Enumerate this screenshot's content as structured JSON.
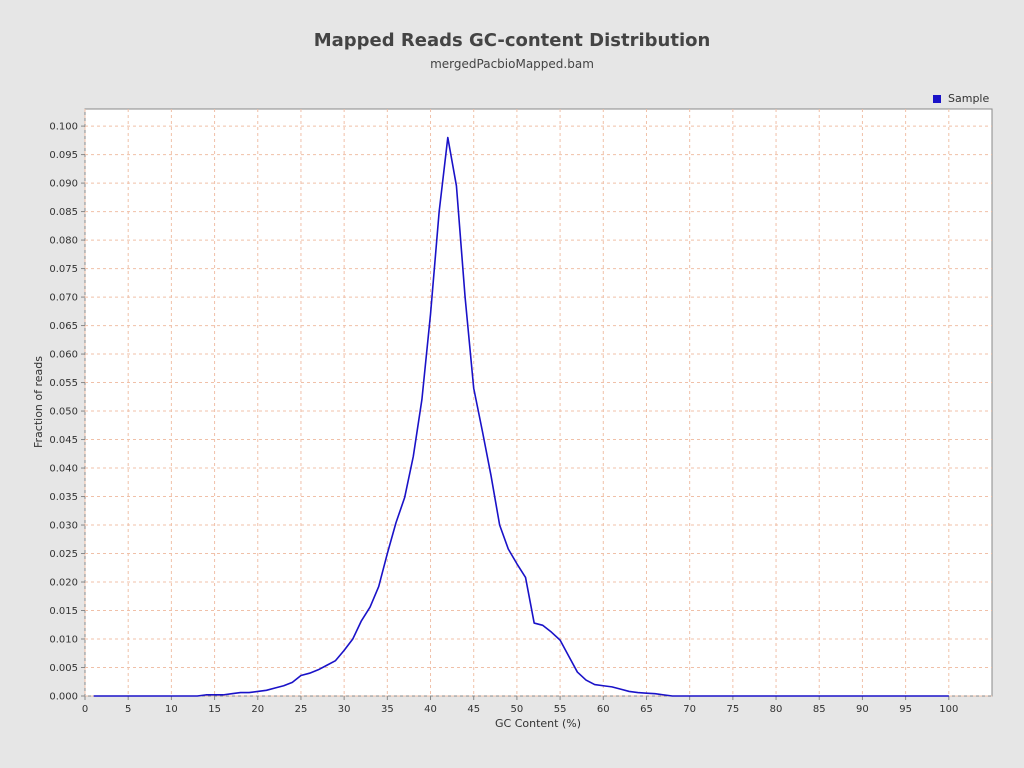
{
  "chart_data": {
    "type": "line",
    "title": "Mapped Reads GC-content Distribution",
    "subtitle": "mergedPacbioMapped.bam",
    "xlabel": "GC Content (%)",
    "ylabel": "Fraction of reads",
    "xlim": [
      0,
      105
    ],
    "ylim": [
      0,
      0.103
    ],
    "xticks": [
      0,
      5,
      10,
      15,
      20,
      25,
      30,
      35,
      40,
      45,
      50,
      55,
      60,
      65,
      70,
      75,
      80,
      85,
      90,
      95,
      100
    ],
    "yticks": [
      0.0,
      0.005,
      0.01,
      0.015,
      0.02,
      0.025,
      0.03,
      0.035,
      0.04,
      0.045,
      0.05,
      0.055,
      0.06,
      0.065,
      0.07,
      0.075,
      0.08,
      0.085,
      0.09,
      0.095,
      0.1
    ],
    "ytick_labels": [
      "0.000",
      "0.005",
      "0.010",
      "0.015",
      "0.020",
      "0.025",
      "0.030",
      "0.035",
      "0.040",
      "0.045",
      "0.050",
      "0.055",
      "0.060",
      "0.065",
      "0.070",
      "0.075",
      "0.080",
      "0.085",
      "0.090",
      "0.095",
      "0.100"
    ],
    "grid": true,
    "legend_position": "top-right",
    "colors": {
      "series": "#1a12c8",
      "grid": "#f0c0a8",
      "plot_background": "#ffffff",
      "page_background": "#e6e6e6"
    },
    "series": [
      {
        "name": "Sample",
        "x": [
          1,
          2,
          3,
          4,
          5,
          6,
          7,
          8,
          9,
          10,
          11,
          12,
          13,
          14,
          15,
          16,
          17,
          18,
          19,
          20,
          21,
          22,
          23,
          24,
          25,
          26,
          27,
          28,
          29,
          30,
          31,
          32,
          33,
          34,
          35,
          36,
          37,
          38,
          39,
          40,
          41,
          42,
          43,
          44,
          45,
          46,
          47,
          48,
          49,
          50,
          51,
          52,
          53,
          54,
          55,
          56,
          57,
          58,
          59,
          60,
          61,
          62,
          63,
          64,
          65,
          66,
          67,
          68,
          69,
          70,
          71,
          72,
          73,
          74,
          75,
          76,
          77,
          78,
          79,
          80,
          81,
          82,
          83,
          84,
          85,
          86,
          87,
          88,
          89,
          90,
          91,
          92,
          93,
          94,
          95,
          96,
          97,
          98,
          99,
          100
        ],
        "y": [
          0,
          0,
          0,
          0,
          0,
          0,
          0,
          0,
          0,
          0,
          0,
          0,
          0,
          0.0002,
          0.0002,
          0.0002,
          0.0004,
          0.0006,
          0.0006,
          0.0008,
          0.001,
          0.0014,
          0.0018,
          0.0024,
          0.0036,
          0.004,
          0.0046,
          0.0054,
          0.0062,
          0.008,
          0.01,
          0.0132,
          0.0156,
          0.0192,
          0.025,
          0.0304,
          0.0348,
          0.042,
          0.052,
          0.067,
          0.085,
          0.098,
          0.0895,
          0.07,
          0.054,
          0.0465,
          0.0387,
          0.03,
          0.0258,
          0.0232,
          0.0208,
          0.0128,
          0.0124,
          0.0112,
          0.0098,
          0.007,
          0.0042,
          0.0028,
          0.002,
          0.0018,
          0.0016,
          0.0012,
          0.0008,
          0.0006,
          0.0005,
          0.0004,
          0.0002,
          0,
          0,
          0,
          0,
          0,
          0,
          0,
          0,
          0,
          0,
          0,
          0,
          0,
          0,
          0,
          0,
          0,
          0,
          0,
          0,
          0,
          0,
          0,
          0,
          0,
          0,
          0,
          0,
          0,
          0,
          0,
          0,
          0
        ]
      }
    ]
  }
}
